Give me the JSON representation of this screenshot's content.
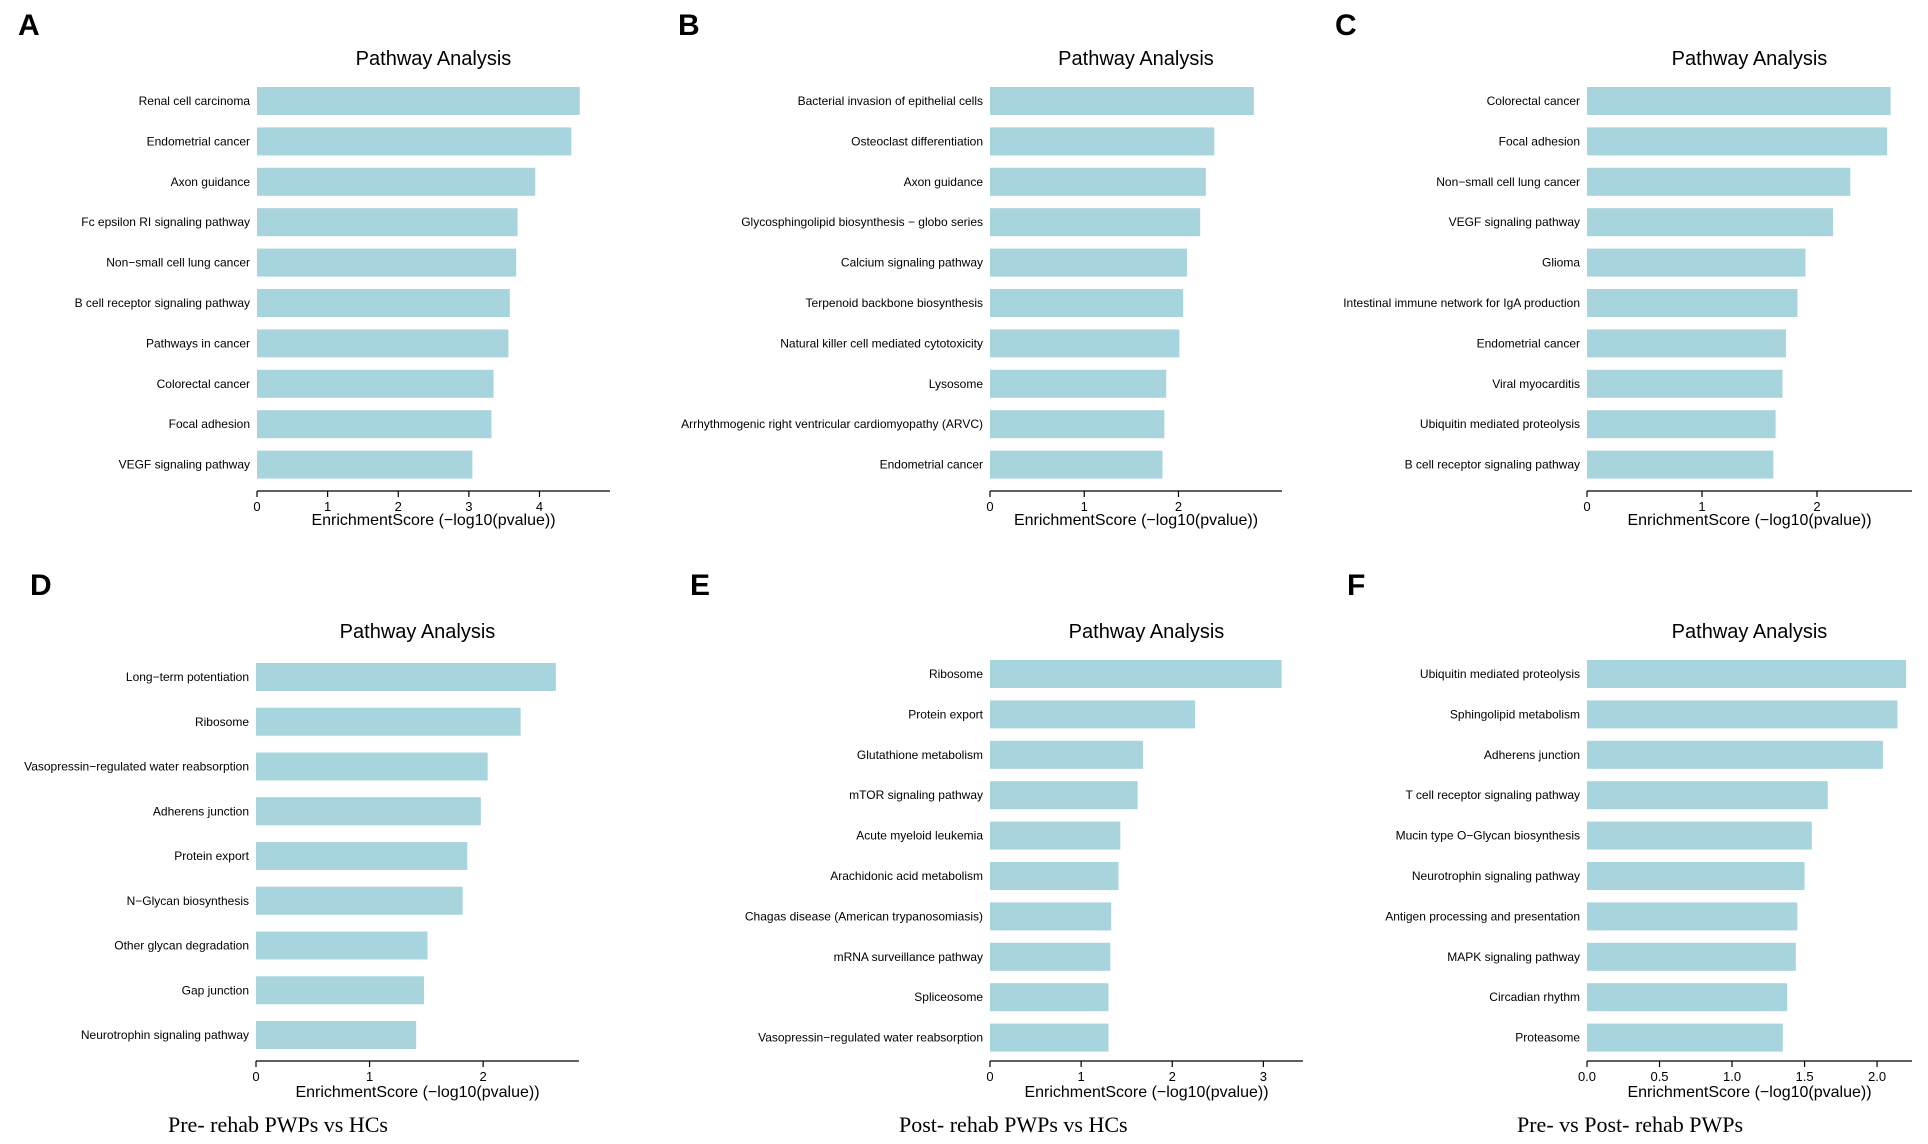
{
  "colors": {
    "bar": "#a8d4de",
    "axis": "#000000",
    "text": "#000000"
  },
  "captions": [
    "Pre- rehab PWPs vs HCs",
    "Post- rehab PWPs vs HCs",
    "Pre- vs Post- rehab PWPs"
  ],
  "chart_data": [
    {
      "panel": "A",
      "type": "bar",
      "orientation": "horizontal",
      "title": "Pathway Analysis",
      "xlabel": "EnrichmentScore (−log10(pvalue))",
      "xlim": [
        0,
        4.8
      ],
      "xticks": [
        0,
        1,
        2,
        3,
        4
      ],
      "categories": [
        "Renal cell carcinoma",
        "Endometrial cancer",
        "Axon guidance",
        "Fc epsilon RI signaling pathway",
        "Non−small cell lung cancer",
        "B cell receptor signaling pathway",
        "Pathways in cancer",
        "Colorectal cancer",
        "Focal adhesion",
        "VEGF signaling pathway"
      ],
      "values": [
        4.57,
        4.45,
        3.94,
        3.69,
        3.67,
        3.58,
        3.56,
        3.35,
        3.32,
        3.05
      ]
    },
    {
      "panel": "B",
      "type": "bar",
      "orientation": "horizontal",
      "title": "Pathway Analysis",
      "xlabel": "EnrichmentScore (−log10(pvalue))",
      "xlim": [
        0,
        2.95
      ],
      "xticks": [
        0,
        1,
        2
      ],
      "categories": [
        "Bacterial invasion of epithelial cells",
        "Osteoclast differentiation",
        "Axon guidance",
        "Glycosphingolipid biosynthesis − globo series",
        "Calcium signaling pathway",
        "Terpenoid backbone biosynthesis",
        "Natural killer cell mediated cytotoxicity",
        "Lysosome",
        "Arrhythmogenic right ventricular cardiomyopathy (ARVC)",
        "Endometrial cancer"
      ],
      "values": [
        2.8,
        2.38,
        2.29,
        2.23,
        2.09,
        2.05,
        2.01,
        1.87,
        1.85,
        1.83
      ]
    },
    {
      "panel": "C",
      "type": "bar",
      "orientation": "horizontal",
      "title": "Pathway Analysis",
      "xlabel": "EnrichmentScore (−log10(pvalue))",
      "xlim": [
        0,
        2.8
      ],
      "xticks": [
        0,
        1,
        2
      ],
      "categories": [
        "Colorectal cancer",
        "Focal adhesion",
        "Non−small cell lung cancer",
        "VEGF signaling pathway",
        "Glioma",
        "Intestinal immune network for IgA production",
        "Endometrial cancer",
        "Viral myocarditis",
        "Ubiquitin mediated proteolysis",
        "B cell receptor signaling pathway"
      ],
      "values": [
        2.64,
        2.61,
        2.29,
        2.14,
        1.9,
        1.83,
        1.73,
        1.7,
        1.64,
        1.62
      ]
    },
    {
      "panel": "D",
      "type": "bar",
      "orientation": "horizontal",
      "title": "Pathway Analysis",
      "xlabel": "EnrichmentScore (−log10(pvalue))",
      "xlim": [
        0,
        2.8
      ],
      "xticks": [
        0,
        1,
        2
      ],
      "categories": [
        "Long−term potentiation",
        "Ribosome",
        "Vasopressin−regulated water reabsorption",
        "Adherens junction",
        "Protein export",
        "N−Glycan biosynthesis",
        "Other glycan degradation",
        "Gap junction",
        "Neurotrophin signaling pathway"
      ],
      "values": [
        2.64,
        2.33,
        2.04,
        1.98,
        1.86,
        1.82,
        1.51,
        1.48,
        1.41
      ]
    },
    {
      "panel": "E",
      "type": "bar",
      "orientation": "horizontal",
      "title": "Pathway Analysis",
      "xlabel": "EnrichmentScore (−log10(pvalue))",
      "xlim": [
        0,
        3.38
      ],
      "xticks": [
        0,
        1,
        2,
        3
      ],
      "categories": [
        "Ribosome",
        "Protein export",
        "Glutathione metabolism",
        "mTOR signaling pathway",
        "Acute myeloid leukemia",
        "Arachidonic acid metabolism",
        "Chagas disease (American trypanosomiasis)",
        "mRNA surveillance pathway",
        "Spliceosome",
        "Vasopressin−regulated water reabsorption"
      ],
      "values": [
        3.2,
        2.25,
        1.68,
        1.62,
        1.43,
        1.41,
        1.33,
        1.32,
        1.3,
        1.3
      ]
    },
    {
      "panel": "F",
      "type": "bar",
      "orientation": "horizontal",
      "title": "Pathway Analysis",
      "xlabel": "EnrichmentScore (−log10(pvalue))",
      "xlim": [
        0,
        2.22
      ],
      "xticks": [
        0.0,
        0.5,
        1.0,
        1.5,
        2.0
      ],
      "tick_decimals": 1,
      "categories": [
        "Ubiquitin mediated proteolysis",
        "Sphingolipid metabolism",
        "Adherens junction",
        "T cell receptor signaling pathway",
        "Mucin type O−Glycan biosynthesis",
        "Neurotrophin signaling pathway",
        "Antigen processing and presentation",
        "MAPK signaling pathway",
        "Circadian rhythm",
        "Proteasome"
      ],
      "values": [
        2.2,
        2.14,
        2.04,
        1.66,
        1.55,
        1.5,
        1.45,
        1.44,
        1.38,
        1.35
      ]
    }
  ]
}
